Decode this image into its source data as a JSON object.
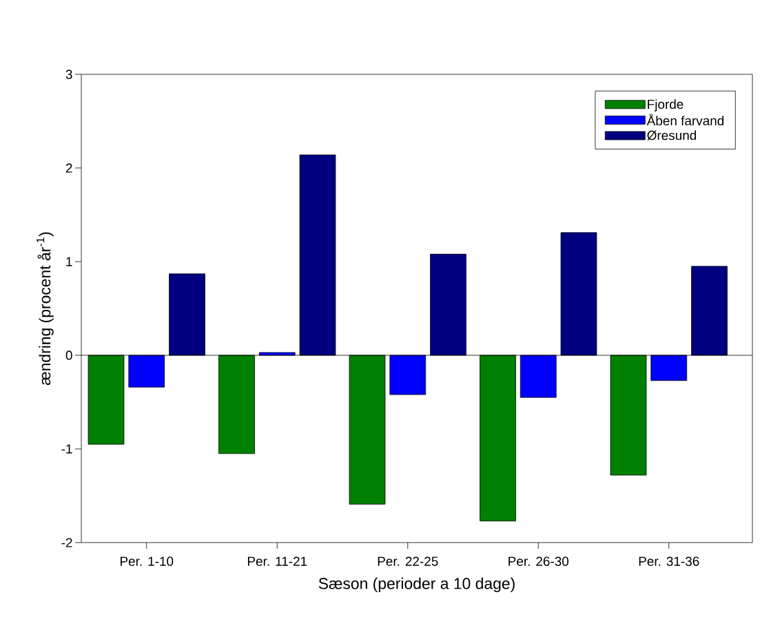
{
  "chart_data": {
    "type": "bar",
    "xlabel": "Sæson (perioder a 10 dage)",
    "ylabel": "ændring (procent år$^{-1}$)",
    "categories": [
      "Per. 1-10",
      "Per. 11-21",
      "Per. 22-25",
      "Per. 26-30",
      "Per. 31-36"
    ],
    "series": [
      {
        "name": "Fjorde",
        "color": "#008000",
        "values": [
          -0.95,
          -1.05,
          -1.59,
          -1.77,
          -1.28
        ]
      },
      {
        "name": "Åben farvand",
        "color": "#0000ff",
        "values": [
          -0.34,
          0.03,
          -0.42,
          -0.45,
          -0.27
        ]
      },
      {
        "name": "Øresund",
        "color": "#000080",
        "values": [
          0.87,
          2.14,
          1.08,
          1.31,
          0.95
        ]
      }
    ],
    "ylim": [
      -2,
      3
    ],
    "yticks": [
      -2,
      -1,
      0,
      1,
      2,
      3
    ],
    "grid": false,
    "legend": "top right",
    "ref_lines": [
      {
        "axis": "y",
        "value": 0
      }
    ]
  }
}
